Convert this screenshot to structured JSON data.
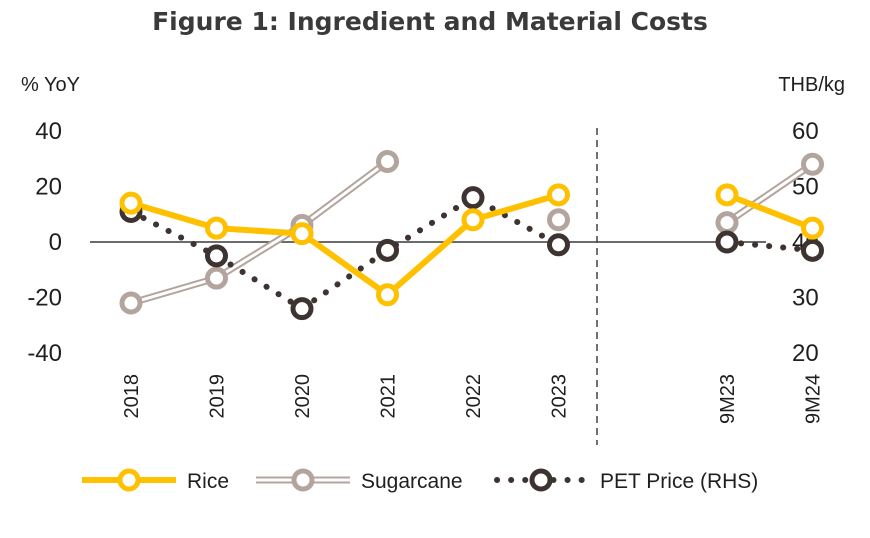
{
  "chart_data": {
    "type": "line",
    "title": "Figure 1: Ingredient and Material Costs",
    "ylabel_left": "% YoY",
    "ylabel_right": "THB/kg",
    "categories": [
      "2018",
      "2019",
      "2020",
      "2021",
      "2022",
      "2023",
      "9M23",
      "9M24"
    ],
    "left_axis": {
      "ylim": [
        -40,
        40
      ],
      "ticks": [
        "40",
        "20",
        "0",
        "-20",
        "-40"
      ]
    },
    "right_axis": {
      "ylim": [
        20,
        60
      ],
      "ticks": [
        "60",
        "50",
        "40",
        "30",
        "20"
      ]
    },
    "divider_after": "2023",
    "grid": false,
    "legend_position": "bottom",
    "series": [
      {
        "name": "Rice",
        "axis": "left",
        "color": "#FFC000",
        "style": "solid",
        "values": [
          14,
          5,
          3,
          -19,
          8,
          17,
          17,
          5
        ]
      },
      {
        "name": "Sugarcane",
        "axis": "left",
        "color": "#B3A49E",
        "style": "double",
        "values": [
          -22,
          -13,
          6,
          29,
          null,
          8,
          7,
          28
        ]
      },
      {
        "name": "PET Price (RHS)",
        "axis": "right",
        "color": "#3D3431",
        "style": "dotted",
        "values": [
          45.5,
          37.5,
          28,
          38.5,
          48,
          39.5,
          40,
          38.5
        ]
      }
    ]
  }
}
